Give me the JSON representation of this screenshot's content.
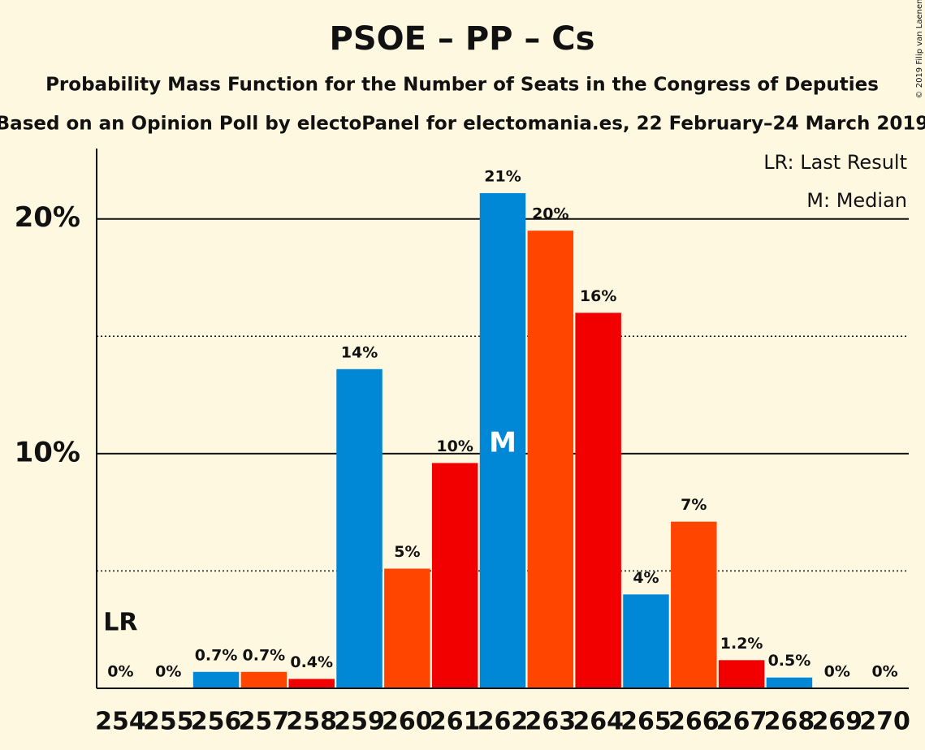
{
  "chart_data": {
    "type": "bar",
    "title": "PSOE – PP – Cs",
    "subtitle": "Probability Mass Function for the Number of Seats in the Congress of Deputies",
    "subtitle2": "Based on an Opinion Poll by electoPanel for electomania.es, 22 February–24 March 2019",
    "copyright": "© 2019 Filip van Laenen",
    "categories": [
      254,
      255,
      256,
      257,
      258,
      259,
      260,
      261,
      262,
      263,
      264,
      265,
      266,
      267,
      268,
      269,
      270
    ],
    "values": [
      0,
      0,
      0.7,
      0.7,
      0.4,
      13.6,
      5.1,
      9.6,
      21.1,
      19.5,
      16.0,
      4.0,
      7.1,
      1.2,
      0.46,
      0,
      0
    ],
    "value_labels": [
      "0%",
      "0%",
      "0.7%",
      "0.7%",
      "0.4%",
      "14%",
      "5%",
      "10%",
      "21%",
      "20%",
      "16%",
      "4%",
      "7%",
      "1.2%",
      "0.5%",
      "0%",
      "0%"
    ],
    "colors": [
      "#f20000",
      "#0088d6",
      "#0088d6",
      "#ff4500",
      "#f20000",
      "#0088d6",
      "#ff4500",
      "#f20000",
      "#0088d6",
      "#ff4500",
      "#f20000",
      "#0088d6",
      "#ff4500",
      "#f20000",
      "#0088d6",
      "#ff4500",
      "#f20000"
    ],
    "ylim": [
      0,
      23
    ],
    "yticks": [
      {
        "value": 10,
        "label": "10%"
      },
      {
        "value": 20,
        "label": "20%"
      }
    ],
    "minor_grid": [
      5,
      15
    ],
    "last_result": 254,
    "lr_marker": "LR",
    "median": 262,
    "median_marker": "M",
    "legend_lr": "LR: Last Result",
    "legend_median": "M: Median"
  }
}
